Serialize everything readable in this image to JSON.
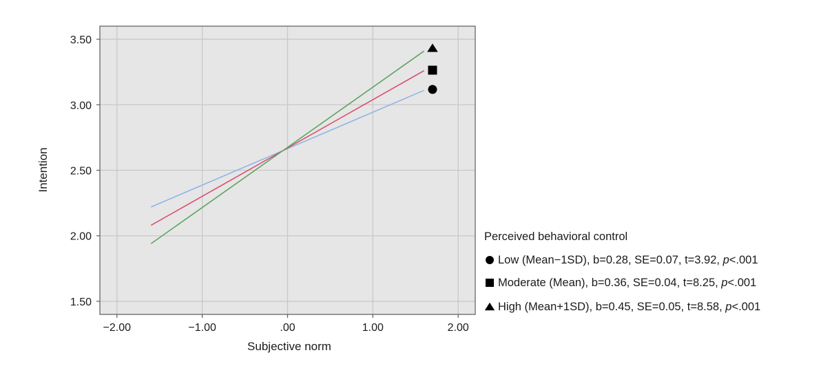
{
  "chart_data": {
    "type": "line",
    "title": "",
    "xlabel": "Subjective norm",
    "ylabel": "Intention",
    "xlim": [
      -2.2,
      2.2
    ],
    "ylim": [
      1.4,
      3.6
    ],
    "xticks": [
      -2,
      -1,
      0,
      1,
      2
    ],
    "xtick_labels": [
      "−2.00",
      "−1.00",
      ".00",
      "1.00",
      "2.00"
    ],
    "yticks": [
      1.5,
      2.0,
      2.5,
      3.0,
      3.5
    ],
    "ytick_labels": [
      "1.50",
      "2.00",
      "2.50",
      "3.00",
      "3.50"
    ],
    "grid": true,
    "legend_title": "Perceived behavioral control",
    "legend_position": "bottom-right outside",
    "series": [
      {
        "name": "Low (Mean−1SD)",
        "marker": "circle",
        "color": "#8fb3e8",
        "x": [
          -1.6,
          1.6
        ],
        "y": [
          2.22,
          3.11
        ],
        "stats": {
          "b": "b=0.28",
          "se": "SE=0.07",
          "t": "t=3.92",
          "p_letter": "p",
          "p_value": "<.001"
        }
      },
      {
        "name": "Moderate (Mean)",
        "marker": "square",
        "color": "#d9506e",
        "x": [
          -1.6,
          1.6
        ],
        "y": [
          2.08,
          3.26
        ],
        "stats": {
          "b": "b=0.36",
          "se": "SE=0.04",
          "t": "t=8.25",
          "p_letter": "p",
          "p_value": "<.001"
        }
      },
      {
        "name": "High (Mean+1SD)",
        "marker": "triangle",
        "color": "#5fa35f",
        "x": [
          -1.6,
          1.6
        ],
        "y": [
          1.94,
          3.41
        ],
        "stats": {
          "b": "b=0.45",
          "se": "SE=0.05",
          "t": "t=8.58",
          "p_letter": "p",
          "p_value": "<.001"
        }
      }
    ]
  }
}
